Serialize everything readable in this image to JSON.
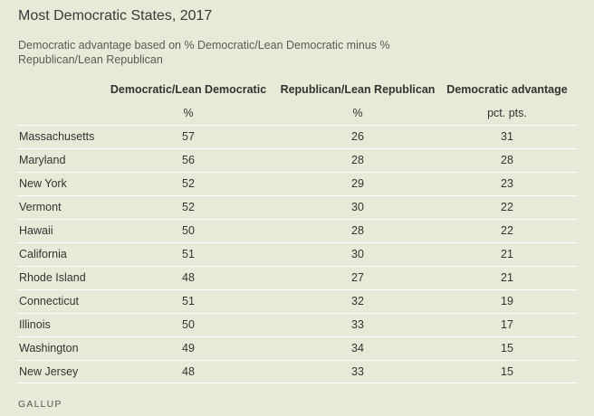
{
  "chart_data": {
    "type": "table",
    "title": "Most Democratic States, 2017",
    "subtitle": "Democratic advantage based on % Democratic/Lean Democratic minus % Republican/Lean Republican",
    "columns": [
      "Democratic/Lean Democratic",
      "Republican/Lean Republican",
      "Democratic advantage"
    ],
    "units": [
      "%",
      "%",
      "pct. pts."
    ],
    "rows": [
      {
        "state": "Massachusetts",
        "dem": 57,
        "rep": 26,
        "adv": 31
      },
      {
        "state": "Maryland",
        "dem": 56,
        "rep": 28,
        "adv": 28
      },
      {
        "state": "New York",
        "dem": 52,
        "rep": 29,
        "adv": 23
      },
      {
        "state": "Vermont",
        "dem": 52,
        "rep": 30,
        "adv": 22
      },
      {
        "state": "Hawaii",
        "dem": 50,
        "rep": 28,
        "adv": 22
      },
      {
        "state": "California",
        "dem": 51,
        "rep": 30,
        "adv": 21
      },
      {
        "state": "Rhode Island",
        "dem": 48,
        "rep": 27,
        "adv": 21
      },
      {
        "state": "Connecticut",
        "dem": 51,
        "rep": 32,
        "adv": 19
      },
      {
        "state": "Illinois",
        "dem": 50,
        "rep": 33,
        "adv": 17
      },
      {
        "state": "Washington",
        "dem": 49,
        "rep": 34,
        "adv": 15
      },
      {
        "state": "New Jersey",
        "dem": 48,
        "rep": 33,
        "adv": 15
      }
    ]
  },
  "source": "GALLUP",
  "colors": {
    "background": "#e6ebd7",
    "divider": "#ffffff",
    "text": "#333333"
  }
}
